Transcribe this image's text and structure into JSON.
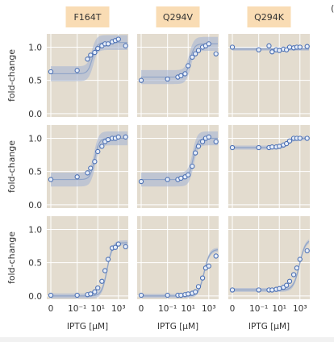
{
  "figure": {
    "corner_mark": "("
  },
  "chart_data": [
    {
      "type": "scatter",
      "panel": "A1",
      "column_title": "F164T",
      "ylabel": "fold-change",
      "xlabel": "",
      "ylim": [
        -0.05,
        1.2
      ],
      "x": [
        0,
        0.1,
        1,
        2,
        5,
        10,
        25,
        50,
        100,
        250,
        500,
        1000,
        5000
      ],
      "y": [
        0.63,
        0.65,
        0.82,
        0.88,
        0.92,
        0.98,
        1.02,
        1.05,
        1.05,
        1.08,
        1.1,
        1.12,
        1.02
      ],
      "fit": {
        "low": 0.6,
        "high": 1.07,
        "ec50": 3,
        "n": 2.0,
        "band": 0.15
      }
    },
    {
      "type": "scatter",
      "panel": "A2",
      "column_title": "Q294V",
      "ylabel": "",
      "xlabel": "",
      "ylim": [
        -0.05,
        1.2
      ],
      "x": [
        0,
        0.1,
        1,
        2,
        5,
        10,
        25,
        50,
        100,
        250,
        500,
        1000,
        5000
      ],
      "y": [
        0.5,
        0.52,
        0.55,
        0.57,
        0.6,
        0.72,
        0.85,
        0.9,
        0.95,
        1.0,
        1.02,
        1.05,
        0.9
      ],
      "fit": {
        "low": 0.55,
        "high": 1.05,
        "ec50": 15,
        "n": 2.0,
        "band": 0.14
      }
    },
    {
      "type": "scatter",
      "panel": "A3",
      "column_title": "Q294K",
      "ylabel": "",
      "xlabel": "",
      "ylim": [
        -0.05,
        1.2
      ],
      "x": [
        0,
        0.1,
        1,
        2,
        5,
        10,
        25,
        50,
        100,
        250,
        500,
        1000,
        5000
      ],
      "y": [
        1.0,
        0.96,
        1.02,
        0.93,
        0.96,
        0.95,
        0.97,
        0.96,
        1.0,
        0.99,
        1.0,
        1.0,
        1.01
      ],
      "fit": {
        "low": 0.97,
        "high": 0.97,
        "ec50": 10,
        "n": 1.0,
        "band": 0.03
      }
    },
    {
      "type": "scatter",
      "panel": "B1",
      "column_title": "",
      "ylabel": "fold-change",
      "xlabel": "",
      "ylim": [
        -0.05,
        1.2
      ],
      "x": [
        0,
        0.1,
        1,
        2,
        5,
        10,
        25,
        50,
        100,
        250,
        500,
        1000,
        5000
      ],
      "y": [
        0.38,
        0.42,
        0.48,
        0.55,
        0.65,
        0.8,
        0.88,
        0.95,
        0.98,
        1.0,
        1.0,
        1.02,
        1.02
      ],
      "fit": {
        "low": 0.38,
        "high": 1.0,
        "ec50": 5,
        "n": 2.0,
        "band": 0.14
      }
    },
    {
      "type": "scatter",
      "panel": "B2",
      "column_title": "",
      "ylabel": "",
      "xlabel": "",
      "ylim": [
        -0.05,
        1.2
      ],
      "x": [
        0,
        0.1,
        1,
        2,
        5,
        10,
        25,
        50,
        100,
        250,
        500,
        1000,
        5000
      ],
      "y": [
        0.35,
        0.38,
        0.38,
        0.4,
        0.42,
        0.45,
        0.58,
        0.78,
        0.88,
        0.95,
        1.0,
        1.02,
        0.95
      ],
      "fit": {
        "low": 0.38,
        "high": 1.0,
        "ec50": 30,
        "n": 2.0,
        "band": 0.14
      }
    },
    {
      "type": "scatter",
      "panel": "B3",
      "column_title": "",
      "ylabel": "",
      "xlabel": "",
      "ylim": [
        -0.05,
        1.2
      ],
      "x": [
        0,
        0.1,
        1,
        2,
        5,
        10,
        25,
        50,
        100,
        250,
        500,
        1000,
        5000
      ],
      "y": [
        0.86,
        0.86,
        0.86,
        0.87,
        0.87,
        0.88,
        0.9,
        0.92,
        0.96,
        1.0,
        1.0,
        1.0,
        1.0
      ],
      "fit": {
        "low": 0.86,
        "high": 1.0,
        "ec50": 60,
        "n": 1.5,
        "band": 0.04
      }
    },
    {
      "type": "scatter",
      "panel": "C1",
      "column_title": "",
      "ylabel": "fold-change",
      "xlabel": "IPTG [μM]",
      "ylim": [
        -0.05,
        1.2
      ],
      "x": [
        0,
        0.1,
        1,
        2,
        5,
        10,
        25,
        50,
        100,
        250,
        500,
        1000,
        5000
      ],
      "y": [
        0.01,
        0.01,
        0.02,
        0.03,
        0.06,
        0.12,
        0.22,
        0.38,
        0.55,
        0.72,
        0.73,
        0.78,
        0.74
      ],
      "fit": {
        "low": 0.0,
        "high": 0.8,
        "ec50": 80,
        "n": 1.7,
        "band": 0.05
      }
    },
    {
      "type": "scatter",
      "panel": "C2",
      "column_title": "",
      "ylabel": "",
      "xlabel": "IPTG [μM]",
      "ylim": [
        -0.05,
        1.2
      ],
      "x": [
        0,
        0.1,
        1,
        2,
        5,
        10,
        25,
        50,
        100,
        250,
        500,
        1000,
        5000
      ],
      "y": [
        0.01,
        0.01,
        0.01,
        0.01,
        0.02,
        0.03,
        0.04,
        0.06,
        0.14,
        0.27,
        0.42,
        0.45,
        0.6
      ],
      "fit": {
        "low": 0.0,
        "high": 0.7,
        "ec50": 350,
        "n": 1.6,
        "band": 0.04
      }
    },
    {
      "type": "scatter",
      "panel": "C3",
      "column_title": "",
      "ylabel": "",
      "xlabel": "IPTG [μM]",
      "ylim": [
        -0.05,
        1.2
      ],
      "x": [
        0,
        0.1,
        1,
        2,
        5,
        10,
        25,
        50,
        100,
        250,
        500,
        1000,
        5000
      ],
      "y": [
        0.09,
        0.09,
        0.09,
        0.09,
        0.1,
        0.11,
        0.13,
        0.16,
        0.22,
        0.32,
        0.42,
        0.55,
        0.68
      ],
      "fit": {
        "low": 0.09,
        "high": 0.85,
        "ec50": 900,
        "n": 1.5,
        "band": 0.04
      }
    }
  ],
  "axes": {
    "y_ticks": [
      0.0,
      0.5,
      1.0
    ],
    "y_tick_labels": [
      "0.0",
      "0.5",
      "1.0"
    ],
    "x_tick_labels": [
      "0",
      "10⁻¹",
      "10¹",
      "10³"
    ]
  },
  "colors": {
    "panel_bg": "#e3dccf",
    "grid": "#ffffff",
    "title_box": "#f9dcb4",
    "marker_edge": "#4b70b4",
    "marker_fill": "#e8eef8",
    "fit_line": "#8fa4c8",
    "fit_band": "#a7b6d3"
  }
}
